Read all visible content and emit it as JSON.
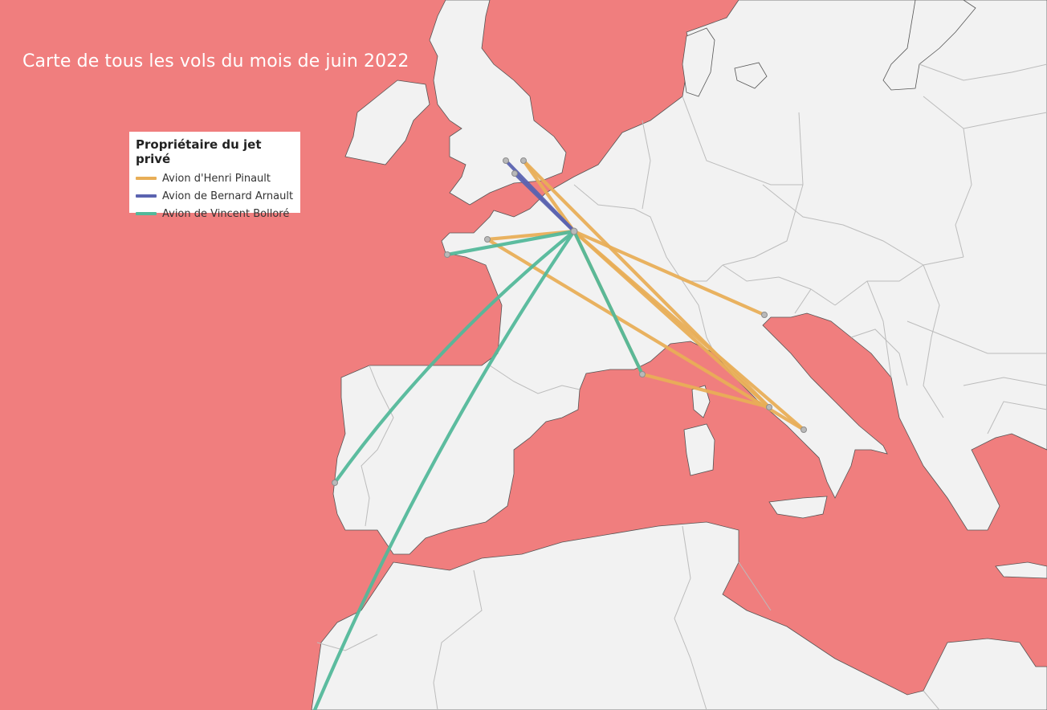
{
  "title": "Carte de tous les vols du mois de juin 2022",
  "colors": {
    "sea": "#f07e7e",
    "land": "#f2f2f2"
  },
  "legend": {
    "title": "Propriétaire du jet privé",
    "items": [
      {
        "label": "Avion d'Henri Pinault",
        "color": "#e8ae57"
      },
      {
        "label": "Avion de Bernard Arnault",
        "color": "#5b63b0"
      },
      {
        "label": "Avion de Vincent Bolloré",
        "color": "#53b89a"
      }
    ]
  }
}
